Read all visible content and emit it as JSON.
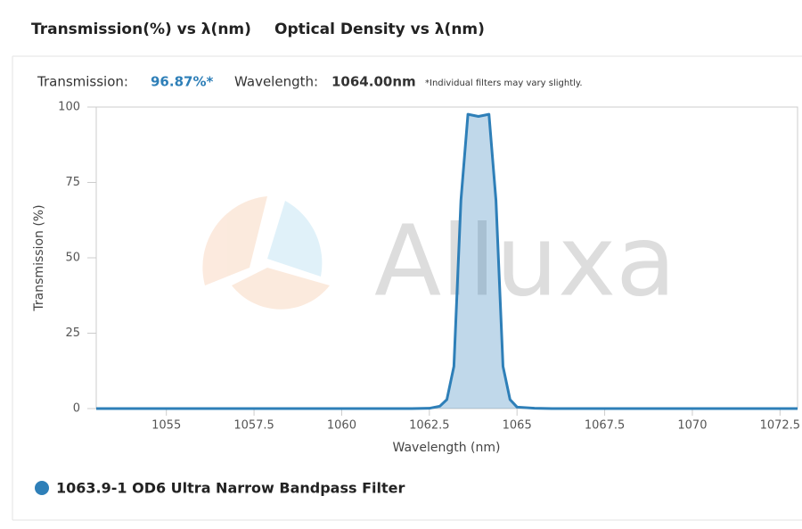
{
  "tabs": [
    "Transmission(%) vs λ(nm)",
    "Optical Density vs λ(nm)"
  ],
  "info": {
    "transmission_label": "Transmission:",
    "transmission_value": "96.87%*",
    "wavelength_label": "Wavelength:",
    "wavelength_value": "1064.00nm",
    "note": "*Individual filters may vary slightly."
  },
  "chart_data": {
    "type": "line",
    "watermark": "Alluxa",
    "x_label": "Wavelength (nm)",
    "y_label": "Transmission (%)",
    "x": [
      1053,
      1055,
      1060,
      1062,
      1062.5,
      1062.8,
      1063,
      1063.2,
      1063.4,
      1063.6,
      1063.9,
      1064.2,
      1064.4,
      1064.6,
      1064.8,
      1065,
      1065.5,
      1066,
      1070,
      1073
    ],
    "series": [
      {
        "name": "1063.9-1 OD6 Ultra Narrow Bandpass Filter",
        "color": "#2e7fb8",
        "values": [
          0,
          0,
          0,
          0,
          0.1,
          0.8,
          3,
          14,
          69,
          97.6,
          96.9,
          97.6,
          69,
          14,
          3,
          0.5,
          0.1,
          0,
          0,
          0
        ]
      }
    ],
    "xlim": [
      1053,
      1073
    ],
    "ylim": [
      0,
      100
    ],
    "xticks": [
      1055,
      1057.5,
      1060,
      1062.5,
      1065,
      1067.5,
      1070,
      1072.5
    ],
    "yticks": [
      0,
      25,
      50,
      75,
      100
    ],
    "grid": false,
    "fill_area": true
  }
}
